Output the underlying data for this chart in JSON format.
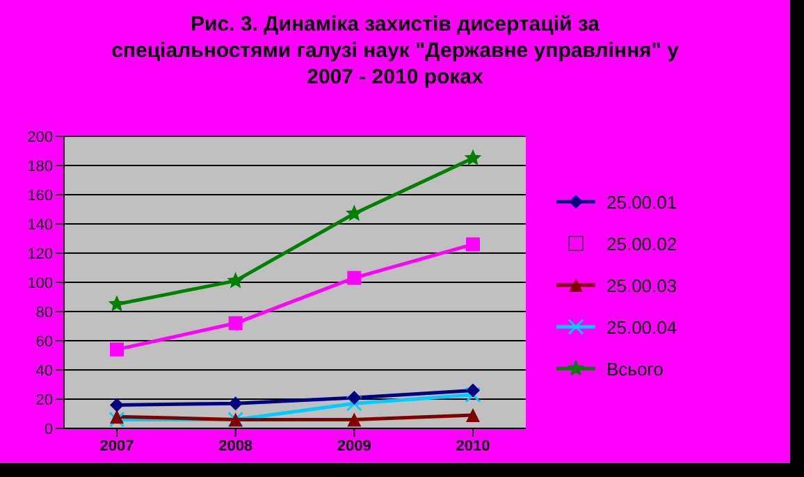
{
  "chart_data": {
    "type": "line",
    "title": "Рис. 3. Динаміка захистів дисертацій за\nспеціальностями галузі наук \"Державне управління\" у\n2007 - 2010 роках",
    "categories": [
      "2007",
      "2008",
      "2009",
      "2010"
    ],
    "series": [
      {
        "name": "25.00.01",
        "color": "#000080",
        "marker": "diamond",
        "values": [
          16,
          17,
          21,
          26
        ]
      },
      {
        "name": "25.00.02",
        "color": "#ff00ff",
        "marker": "square",
        "values": [
          54,
          72,
          103,
          126
        ]
      },
      {
        "name": "25.00.03",
        "color": "#800000",
        "marker": "triangle",
        "values": [
          8,
          6,
          6,
          9
        ]
      },
      {
        "name": "25.00.04",
        "color": "#00ccff",
        "marker": "cross",
        "values": [
          6,
          6,
          17,
          23
        ]
      },
      {
        "name": "Всього",
        "color": "#008000",
        "marker": "star",
        "values": [
          85,
          101,
          147,
          185
        ]
      }
    ],
    "ylim": [
      0,
      200
    ],
    "yticks": [
      0,
      20,
      40,
      60,
      80,
      100,
      120,
      140,
      160,
      180,
      200
    ],
    "grid": "y",
    "legend": "right",
    "line_style": "solid"
  }
}
